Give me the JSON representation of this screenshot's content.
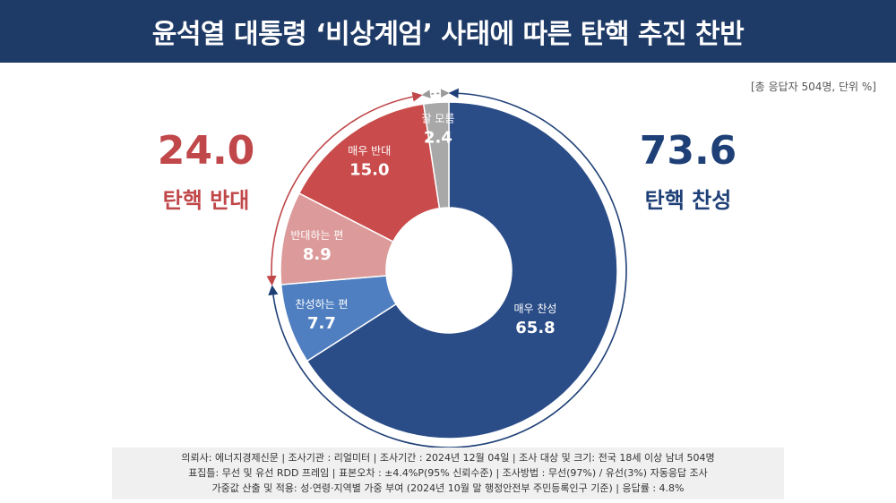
{
  "header": {
    "title": "윤석열 대통령 ‘비상계엄’ 사태에 따른 탄핵 추진 찬반"
  },
  "unit_note": "[총 응답자 504명, 단위 %]",
  "summary": {
    "oppose": {
      "value": "24.0",
      "label": "탄핵 반대"
    },
    "support": {
      "value": "73.6",
      "label": "탄핵 찬성"
    }
  },
  "colors": {
    "header_bg": "#1e3a66",
    "strong_support": "#2a4c87",
    "lean_support": "#4f7fc0",
    "lean_oppose": "#dc9a9a",
    "strong_oppose": "#c94b4b",
    "dont_know": "#a8a8a8",
    "support_text": "#1f4077",
    "oppose_text": "#c0474a"
  },
  "chart_data": {
    "type": "pie",
    "variant": "donut",
    "categories": [
      "매우 찬성",
      "찬성하는 편",
      "반대하는 편",
      "매우 반대",
      "잘 모름"
    ],
    "values": [
      65.8,
      7.7,
      8.9,
      15.0,
      2.4
    ],
    "display_values": [
      "65.8",
      "7.7",
      "8.9",
      "15.0",
      "2.4"
    ],
    "title": "윤석열 대통령 ‘비상계엄’ 사태에 따른 탄핵 추진 찬반"
  },
  "footer": {
    "line1": "의뢰사: 에너지경제신문 | 조사기관 : 리얼미터  | 조사기간 : 2024년 12월 04일 | 조사 대상 및 크기: 전국 18세 이상 남녀 504명",
    "line2": "표집틀: 무선 및 유선 RDD 프레임 | 표본오차 : ±4.4%P(95% 신뢰수준) | 조사방법 : 무선(97%) / 유선(3%) 자동응답 조사",
    "line3": "가중값 산출 및 적용: 성·연령·지역별 가중 부여 (2024년 10월 말 행정안전부 주민등록인구 기준) | 응답률 : 4.8%"
  }
}
